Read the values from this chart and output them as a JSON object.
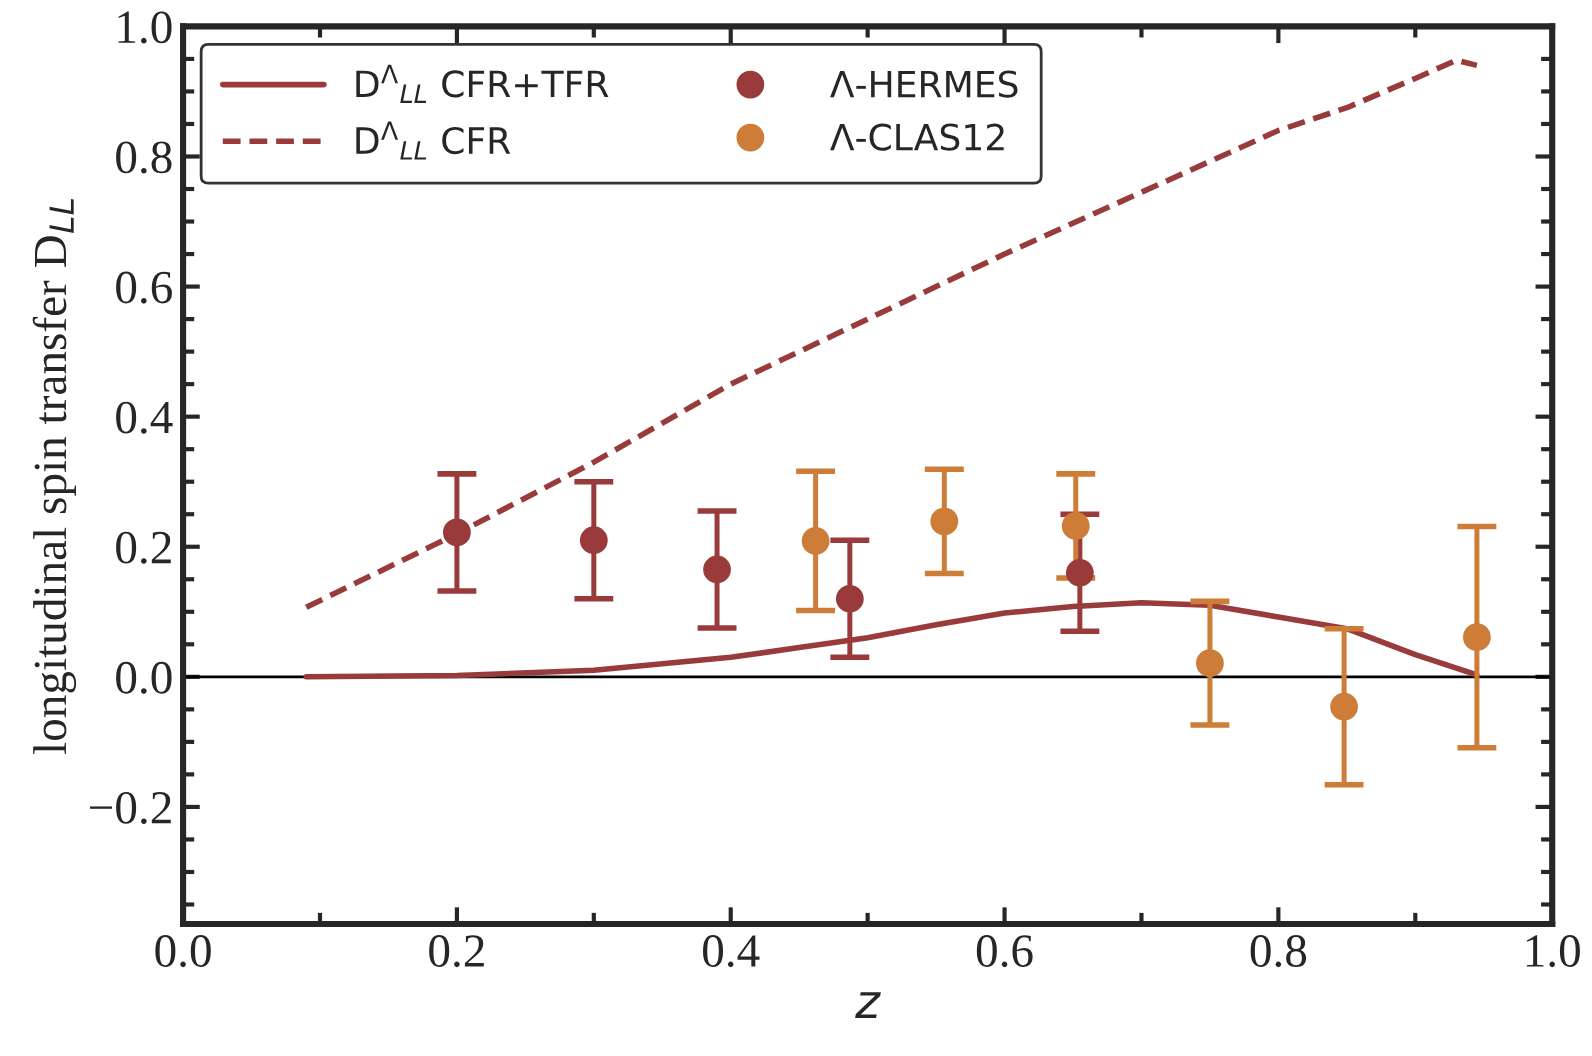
{
  "chart_data": {
    "type": "line",
    "xlabel": "z",
    "ylabel": "longitudinal spin transfer D$_{LL}$",
    "xlim": [
      0.0,
      1.0
    ],
    "xticks": [
      {
        "value": 0,
        "label": "0.0"
      },
      0.2,
      0.4,
      0.6,
      0.8,
      {
        "value": 1,
        "label": "1.0"
      }
    ],
    "ylim": [
      -0.38,
      1.0
    ],
    "yticks": [
      {
        "value": -0.2,
        "label": "−0.2"
      },
      {
        "value": 0,
        "label": "0.0"
      },
      0.2,
      0.4,
      0.6,
      0.8,
      {
        "value": 1,
        "label": "1.0"
      }
    ],
    "grid": false,
    "legend": "top left",
    "ref_lines": [
      {
        "axis": "y",
        "value": 0,
        "color": "#000000"
      }
    ],
    "series": [
      {
        "name": "D$^{Λ}$$_{LL}$ CFR+TFR",
        "line_style": "solid",
        "marker": "none",
        "color": "#993b3b",
        "x": [
          0.09,
          0.2,
          0.3,
          0.4,
          0.45,
          0.5,
          0.55,
          0.6,
          0.65,
          0.7,
          0.75,
          0.8,
          0.85,
          0.9,
          0.945
        ],
        "values": [
          0.0,
          0.002,
          0.01,
          0.03,
          0.045,
          0.06,
          0.08,
          0.098,
          0.108,
          0.114,
          0.11,
          0.092,
          0.074,
          0.034,
          0.003
        ]
      },
      {
        "name": "D$^{Λ}$$_{LL}$ CFR",
        "line_style": "dashed",
        "marker": "none",
        "color": "#993b3b",
        "x": [
          0.09,
          0.2,
          0.3,
          0.4,
          0.5,
          0.6,
          0.7,
          0.8,
          0.85,
          0.9,
          0.93,
          0.945
        ],
        "values": [
          0.107,
          0.22,
          0.33,
          0.45,
          0.55,
          0.65,
          0.745,
          0.84,
          0.875,
          0.92,
          0.948,
          0.94
        ]
      },
      {
        "name": "Λ-HERMES",
        "type": "scatter",
        "marker": "circle",
        "color": "#993b3b",
        "x": [
          0.2,
          0.3,
          0.39,
          0.487,
          0.655
        ],
        "values": [
          0.222,
          0.21,
          0.165,
          0.12,
          0.16
        ],
        "errors": [
          0.09,
          0.09,
          0.09,
          0.09,
          0.09
        ]
      },
      {
        "name": "Λ-CLAS12",
        "type": "scatter",
        "marker": "circle",
        "color": "#cd7d38",
        "x": [
          0.462,
          0.556,
          0.652,
          0.75,
          0.848,
          0.945
        ],
        "values": [
          0.209,
          0.239,
          0.232,
          0.021,
          -0.046,
          0.061
        ],
        "errors": [
          0.107,
          0.08,
          0.08,
          0.095,
          0.12,
          0.17
        ]
      }
    ]
  }
}
